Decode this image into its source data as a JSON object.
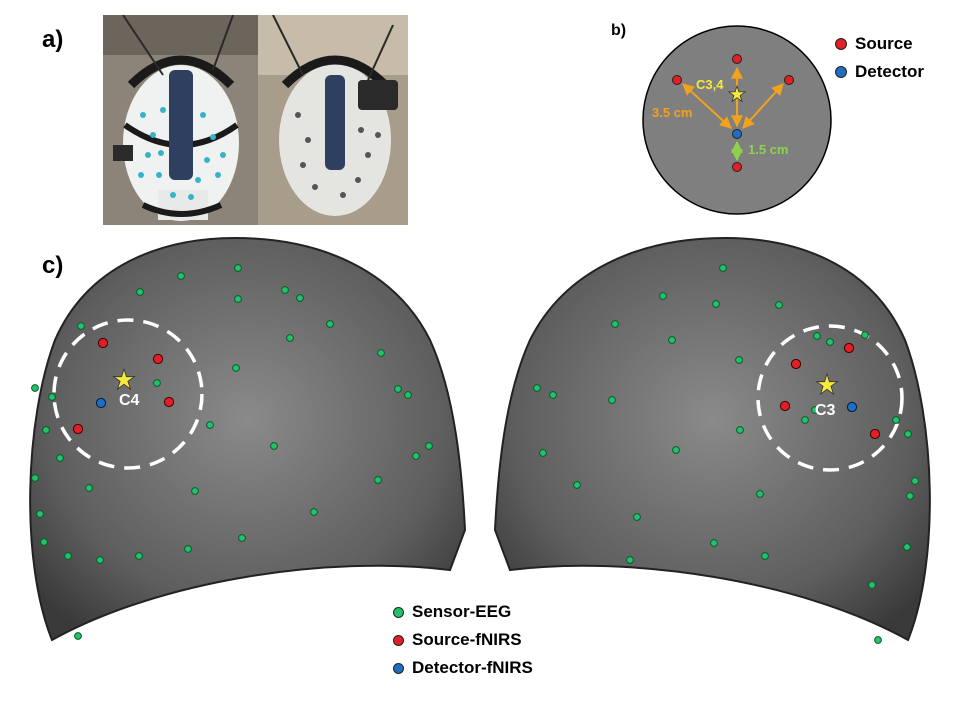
{
  "panels": {
    "a": "a)",
    "b": "b)",
    "c": "c)"
  },
  "colors": {
    "source": "#e01f26",
    "detector": "#1f6fc0",
    "sensor": "#23c16b",
    "star": "#f5ea3c",
    "arrow_long": "#f2a21b",
    "arrow_short": "#8fd14f",
    "circle_fill": "#7f7f7f"
  },
  "schematic": {
    "center_label": "C3,4",
    "long_distance": "3.5 cm",
    "short_distance": "1.5 cm"
  },
  "legend_b": [
    {
      "label": "Source",
      "kind": "source"
    },
    {
      "label": "Detector",
      "kind": "detector"
    }
  ],
  "heads": {
    "left_label": "C4",
    "right_label": "C3"
  },
  "legend_c": [
    {
      "label": "Sensor-EEG",
      "kind": "sensor"
    },
    {
      "label": "Source-fNIRS",
      "kind": "source"
    },
    {
      "label": "Detector-fNIRS",
      "kind": "detector"
    }
  ]
}
